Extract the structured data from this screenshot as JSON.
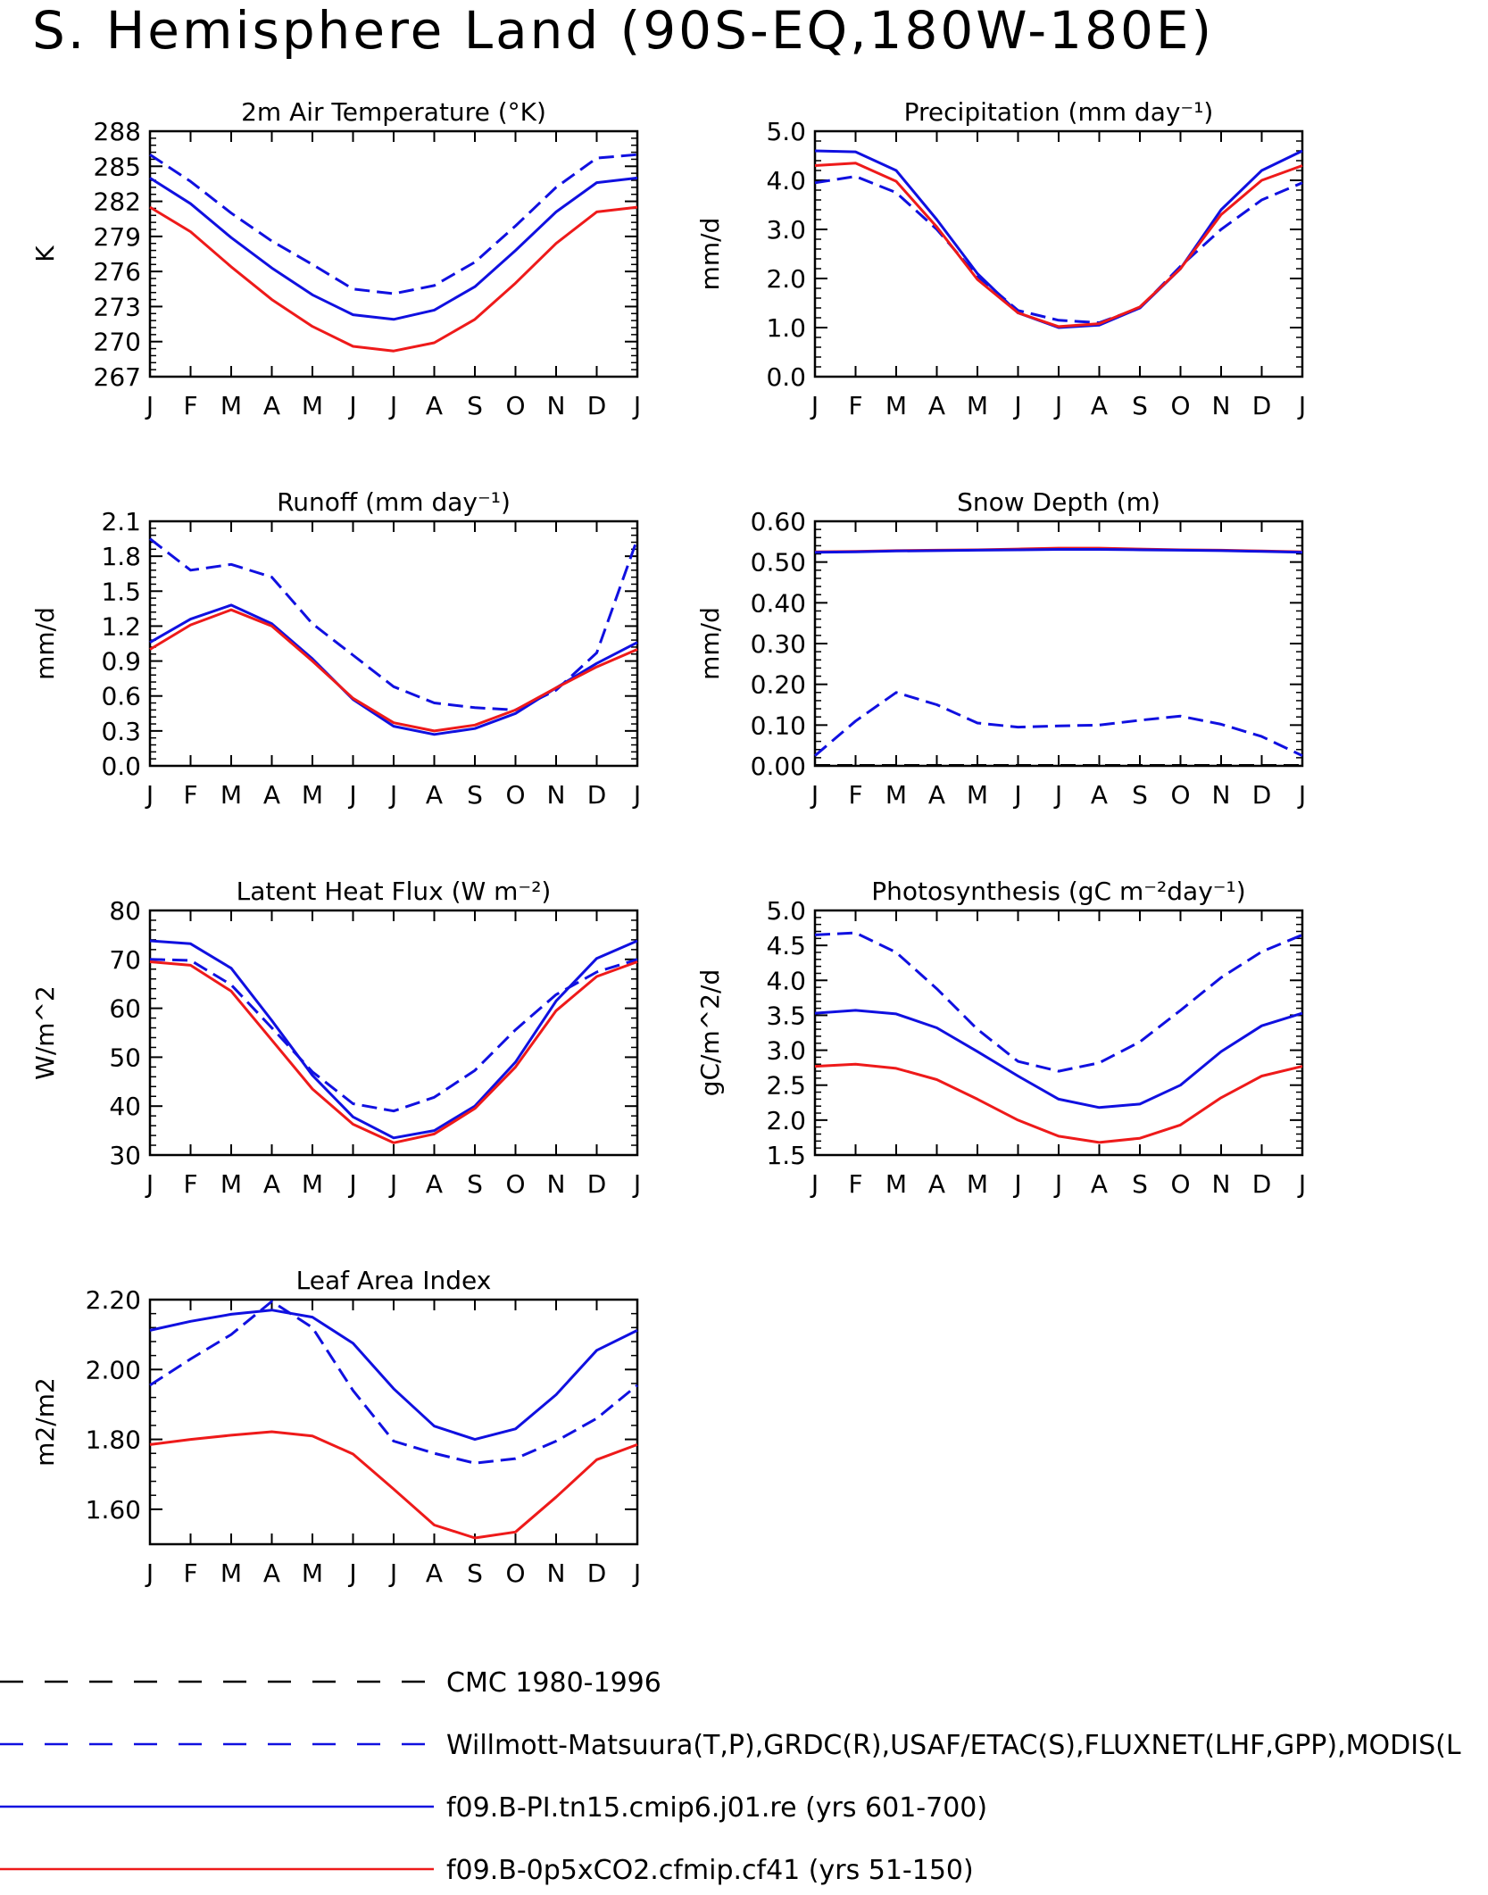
{
  "page_title": "S. Hemisphere Land (90S-EQ,180W-180E)",
  "months": [
    "J",
    "F",
    "M",
    "A",
    "M",
    "J",
    "J",
    "A",
    "S",
    "O",
    "N",
    "D",
    "J"
  ],
  "colors": {
    "blue": "#1010e0",
    "red": "#ee1a1a",
    "black": "#000000"
  },
  "legend": [
    {
      "label": "CMC 1980-1996",
      "color": "#000000",
      "dash": true
    },
    {
      "label": "Willmott-Matsuura(T,P),GRDC(R),USAF/ETAC(S),FLUXNET(LHF,GPP),MODIS(L",
      "color": "#1010e0",
      "dash": true
    },
    {
      "label": "f09.B-PI.tn15.cmip6.j01.re (yrs 601-700)",
      "color": "#1010e0",
      "dash": false
    },
    {
      "label": "f09.B-0p5xCO2.cfmip.cf41 (yrs 51-150)",
      "color": "#ee1a1a",
      "dash": false
    }
  ],
  "chart_data": [
    {
      "type": "line",
      "title": "2m Air Temperature (°K)",
      "ylabel": "K",
      "ylim": [
        267,
        288
      ],
      "yticks": [
        267,
        270,
        273,
        276,
        279,
        282,
        285,
        288
      ],
      "yticklabels": [
        "267",
        "270",
        "273",
        "276",
        "279",
        "282",
        "285",
        "288"
      ],
      "x": [
        "J",
        "F",
        "M",
        "A",
        "M",
        "J",
        "J",
        "A",
        "S",
        "O",
        "N",
        "D",
        "J"
      ],
      "series": [
        {
          "style": "dashed-blue",
          "values": [
            286.0,
            283.7,
            281.0,
            278.6,
            276.6,
            274.5,
            274.1,
            274.8,
            276.8,
            279.9,
            283.2,
            285.7,
            286.0
          ]
        },
        {
          "style": "solid-blue",
          "values": [
            284.0,
            281.8,
            278.9,
            276.3,
            274.0,
            272.3,
            271.9,
            272.7,
            274.7,
            277.8,
            281.1,
            283.6,
            284.0
          ]
        },
        {
          "style": "solid-red",
          "values": [
            281.5,
            279.4,
            276.4,
            273.6,
            271.3,
            269.6,
            269.2,
            269.9,
            271.9,
            275.0,
            278.4,
            281.1,
            281.5
          ]
        }
      ]
    },
    {
      "type": "line",
      "title": "Precipitation (mm day⁻¹)",
      "ylabel": "mm/d",
      "ylim": [
        0.0,
        5.0
      ],
      "yticks": [
        0.0,
        1.0,
        2.0,
        3.0,
        4.0,
        5.0
      ],
      "yticklabels": [
        "0.0",
        "1.0",
        "2.0",
        "3.0",
        "4.0",
        "5.0"
      ],
      "x": [
        "J",
        "F",
        "M",
        "A",
        "M",
        "J",
        "J",
        "A",
        "S",
        "O",
        "N",
        "D",
        "J"
      ],
      "series": [
        {
          "style": "dashed-blue",
          "values": [
            3.95,
            4.08,
            3.75,
            3.0,
            2.05,
            1.35,
            1.15,
            1.1,
            1.4,
            2.25,
            3.0,
            3.6,
            3.95
          ]
        },
        {
          "style": "solid-blue",
          "values": [
            4.6,
            4.58,
            4.2,
            3.2,
            2.1,
            1.3,
            1.0,
            1.05,
            1.4,
            2.2,
            3.4,
            4.2,
            4.6
          ]
        },
        {
          "style": "solid-red",
          "values": [
            4.3,
            4.35,
            3.98,
            3.05,
            1.98,
            1.3,
            1.02,
            1.08,
            1.42,
            2.2,
            3.3,
            4.0,
            4.3
          ]
        }
      ]
    },
    {
      "type": "line",
      "title": "Runoff (mm day⁻¹)",
      "ylabel": "mm/d",
      "ylim": [
        0.0,
        2.1
      ],
      "yticks": [
        0.0,
        0.3,
        0.6,
        0.9,
        1.2,
        1.5,
        1.8,
        2.1
      ],
      "yticklabels": [
        "0.0",
        "0.3",
        "0.6",
        "0.9",
        "1.2",
        "1.5",
        "1.8",
        "2.1"
      ],
      "x": [
        "J",
        "F",
        "M",
        "A",
        "M",
        "J",
        "J",
        "A",
        "S",
        "O",
        "N",
        "D",
        "J"
      ],
      "series": [
        {
          "style": "dashed-blue",
          "values": [
            1.95,
            1.68,
            1.73,
            1.62,
            1.22,
            0.95,
            0.68,
            0.54,
            0.5,
            0.48,
            0.65,
            0.97,
            1.95
          ]
        },
        {
          "style": "solid-blue",
          "values": [
            1.06,
            1.26,
            1.38,
            1.22,
            0.92,
            0.57,
            0.34,
            0.27,
            0.32,
            0.45,
            0.67,
            0.88,
            1.06
          ]
        },
        {
          "style": "solid-red",
          "values": [
            1.0,
            1.21,
            1.34,
            1.2,
            0.9,
            0.58,
            0.37,
            0.3,
            0.35,
            0.48,
            0.67,
            0.85,
            1.0
          ]
        }
      ]
    },
    {
      "type": "line",
      "title": "Snow Depth (m)",
      "ylabel": "mm/d",
      "ylim": [
        0.0,
        0.6
      ],
      "yticks": [
        0.0,
        0.1,
        0.2,
        0.3,
        0.4,
        0.5,
        0.6
      ],
      "yticklabels": [
        "0.00",
        "0.10",
        "0.20",
        "0.30",
        "0.40",
        "0.50",
        "0.60"
      ],
      "x": [
        "J",
        "F",
        "M",
        "A",
        "M",
        "J",
        "J",
        "A",
        "S",
        "O",
        "N",
        "D",
        "J"
      ],
      "series": [
        {
          "style": "dashed-black",
          "values": [
            0.001,
            0.001,
            0.001,
            0.001,
            0.001,
            0.001,
            0.001,
            0.001,
            0.001,
            0.001,
            0.001,
            0.001,
            0.001
          ]
        },
        {
          "style": "dashed-blue",
          "values": [
            0.025,
            0.11,
            0.18,
            0.15,
            0.105,
            0.095,
            0.098,
            0.1,
            0.112,
            0.122,
            0.102,
            0.072,
            0.025
          ]
        },
        {
          "style": "solid-red",
          "values": [
            0.525,
            0.526,
            0.528,
            0.529,
            0.53,
            0.532,
            0.534,
            0.534,
            0.532,
            0.53,
            0.529,
            0.527,
            0.525
          ]
        },
        {
          "style": "solid-blue",
          "values": [
            0.524,
            0.525,
            0.527,
            0.528,
            0.529,
            0.53,
            0.531,
            0.531,
            0.53,
            0.529,
            0.528,
            0.526,
            0.524
          ]
        }
      ]
    },
    {
      "type": "line",
      "title": "Latent Heat Flux (W m⁻²)",
      "ylabel": "W/m^2",
      "ylim": [
        30,
        80
      ],
      "yticks": [
        30,
        40,
        50,
        60,
        70,
        80
      ],
      "yticklabels": [
        "30",
        "40",
        "50",
        "60",
        "70",
        "80"
      ],
      "x": [
        "J",
        "F",
        "M",
        "A",
        "M",
        "J",
        "J",
        "A",
        "S",
        "O",
        "N",
        "D",
        "J"
      ],
      "series": [
        {
          "style": "dashed-blue",
          "values": [
            70.0,
            69.8,
            64.8,
            56.0,
            47.0,
            40.5,
            39.0,
            41.8,
            47.3,
            55.6,
            62.8,
            67.4,
            70.0
          ]
        },
        {
          "style": "solid-blue",
          "values": [
            73.8,
            73.2,
            68.2,
            57.5,
            46.3,
            37.8,
            33.5,
            35.0,
            40.0,
            49.0,
            61.5,
            70.2,
            73.8
          ]
        },
        {
          "style": "solid-red",
          "values": [
            69.5,
            68.8,
            63.5,
            53.5,
            43.5,
            36.3,
            32.5,
            34.3,
            39.5,
            48.0,
            59.5,
            66.5,
            69.5
          ]
        }
      ]
    },
    {
      "type": "line",
      "title": "Photosynthesis (gC m⁻²day⁻¹)",
      "ylabel": "gC/m^2/d",
      "ylim": [
        1.5,
        5.0
      ],
      "yticks": [
        1.5,
        2.0,
        2.5,
        3.0,
        3.5,
        4.0,
        4.5,
        5.0
      ],
      "yticklabels": [
        "1.5",
        "2.0",
        "2.5",
        "3.0",
        "3.5",
        "4.0",
        "4.5",
        "5.0"
      ],
      "x": [
        "J",
        "F",
        "M",
        "A",
        "M",
        "J",
        "J",
        "A",
        "S",
        "O",
        "N",
        "D",
        "J"
      ],
      "series": [
        {
          "style": "dashed-blue",
          "values": [
            4.65,
            4.68,
            4.4,
            3.88,
            3.3,
            2.84,
            2.7,
            2.82,
            3.12,
            3.57,
            4.04,
            4.41,
            4.65
          ]
        },
        {
          "style": "solid-blue",
          "values": [
            3.53,
            3.57,
            3.52,
            3.32,
            2.98,
            2.63,
            2.3,
            2.18,
            2.23,
            2.5,
            2.98,
            3.35,
            3.53
          ]
        },
        {
          "style": "solid-red",
          "values": [
            2.77,
            2.8,
            2.74,
            2.58,
            2.3,
            2.0,
            1.77,
            1.68,
            1.74,
            1.93,
            2.32,
            2.63,
            2.77
          ]
        }
      ]
    },
    {
      "type": "line",
      "title": "Leaf Area Index",
      "ylabel": "m2/m2",
      "ylim": [
        1.5,
        2.2
      ],
      "yticks": [
        1.6,
        1.8,
        2.0,
        2.2
      ],
      "yticklabels": [
        "1.60",
        "1.80",
        "2.00",
        "2.20"
      ],
      "x": [
        "J",
        "F",
        "M",
        "A",
        "M",
        "J",
        "J",
        "A",
        "S",
        "O",
        "N",
        "D",
        "J"
      ],
      "series": [
        {
          "style": "dashed-blue",
          "values": [
            1.955,
            2.03,
            2.1,
            2.195,
            2.12,
            1.94,
            1.795,
            1.76,
            1.732,
            1.745,
            1.795,
            1.86,
            1.955
          ]
        },
        {
          "style": "solid-blue",
          "values": [
            2.112,
            2.138,
            2.158,
            2.17,
            2.15,
            2.075,
            1.945,
            1.838,
            1.8,
            1.83,
            1.928,
            2.055,
            2.112
          ]
        },
        {
          "style": "solid-red",
          "values": [
            1.785,
            1.8,
            1.812,
            1.822,
            1.81,
            1.758,
            1.658,
            1.555,
            1.518,
            1.535,
            1.635,
            1.742,
            1.785
          ]
        }
      ]
    }
  ]
}
